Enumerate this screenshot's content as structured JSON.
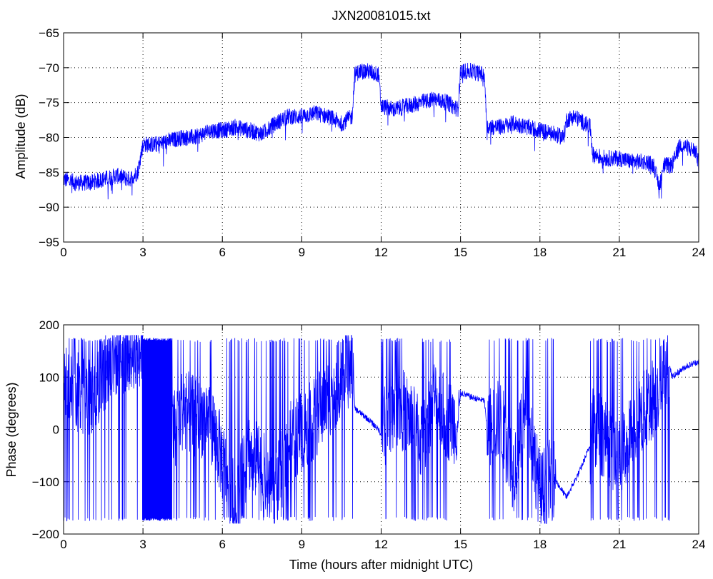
{
  "chart_data": [
    {
      "type": "line",
      "title": "JXN20081015.txt",
      "xlabel": "",
      "ylabel": "Amplitude (dB)",
      "xlim": [
        0,
        24
      ],
      "ylim": [
        -95,
        -65
      ],
      "x_ticks": [
        "0",
        "3",
        "6",
        "9",
        "12",
        "15",
        "18",
        "21",
        "24"
      ],
      "y_ticks": [
        "-65",
        "-70",
        "-75",
        "-80",
        "-85",
        "-90",
        "-95"
      ],
      "grid": true,
      "line_color": "#0000ff",
      "noise_db": 1.2,
      "series": [
        {
          "name": "",
          "x": [
            0,
            0.5,
            1,
            1.5,
            2,
            2.5,
            2.8,
            2.9,
            3.0,
            3.5,
            4.0,
            4.5,
            5.0,
            5.5,
            6.0,
            6.5,
            7.0,
            7.5,
            8.0,
            8.5,
            9.0,
            9.5,
            10.0,
            10.5,
            10.9,
            11.0,
            11.2,
            11.5,
            11.9,
            12.0,
            12.5,
            13.0,
            13.5,
            14.0,
            14.5,
            14.9,
            15.0,
            15.4,
            15.9,
            16.0,
            16.5,
            17.0,
            17.5,
            18.0,
            18.5,
            18.9,
            19.0,
            19.3,
            19.7,
            19.9,
            20.0,
            20.5,
            21.0,
            21.5,
            22.0,
            22.3,
            22.5,
            22.7,
            23.0,
            23.3,
            23.6,
            23.9,
            24.0
          ],
          "y": [
            -86,
            -86.5,
            -86.5,
            -86,
            -85.5,
            -86,
            -85,
            -83,
            -81,
            -81,
            -80.5,
            -80,
            -80,
            -79,
            -79,
            -78.5,
            -79,
            -79.5,
            -78,
            -77,
            -77,
            -76.5,
            -77,
            -78,
            -77,
            -71,
            -70.5,
            -70.5,
            -71,
            -75.5,
            -76,
            -75.5,
            -75,
            -74.5,
            -75,
            -76,
            -70.5,
            -70.5,
            -71,
            -78.5,
            -78.5,
            -78,
            -78.5,
            -79,
            -79.5,
            -80,
            -77.5,
            -77,
            -78,
            -78.5,
            -82.5,
            -83,
            -83,
            -83.5,
            -83.5,
            -84,
            -87,
            -84,
            -84,
            -81,
            -81.5,
            -82,
            -84
          ]
        }
      ]
    },
    {
      "type": "line",
      "title": "",
      "xlabel": "Time (hours after midnight UTC)",
      "ylabel": "Phase (degrees)",
      "xlim": [
        0,
        24
      ],
      "ylim": [
        -200,
        200
      ],
      "x_ticks": [
        "0",
        "3",
        "6",
        "9",
        "12",
        "15",
        "18",
        "21",
        "24"
      ],
      "y_ticks": [
        "200",
        "100",
        "0",
        "-100",
        "-200"
      ],
      "grid": true,
      "line_color": "#0000ff",
      "series": [
        {
          "name": "",
          "note_wrap_range": [
            -180,
            180
          ],
          "x": [
            0,
            1,
            2,
            2.9,
            3.0,
            3.5,
            4.0,
            4.5,
            5.0,
            5.5,
            6.0,
            6.5,
            7.0,
            7.5,
            8.0,
            8.5,
            9.0,
            9.5,
            10.0,
            10.5,
            10.95,
            11.0,
            11.5,
            11.9,
            12.0,
            12.5,
            13.0,
            13.5,
            14.0,
            14.5,
            14.9,
            15.0,
            15.5,
            15.9,
            16.0,
            16.5,
            17.0,
            17.5,
            18.0,
            18.5,
            19.0,
            19.5,
            19.9,
            20.0,
            20.5,
            21.0,
            21.5,
            22.0,
            22.5,
            22.9,
            23.0,
            23.5,
            24.0
          ],
          "y": [
            80,
            60,
            140,
            160,
            170,
            10,
            -20,
            40,
            20,
            30,
            -60,
            -150,
            -40,
            -80,
            -120,
            -30,
            0,
            20,
            60,
            100,
            130,
            40,
            20,
            0,
            -10,
            50,
            30,
            -20,
            60,
            20,
            10,
            70,
            60,
            55,
            0,
            20,
            -80,
            40,
            -120,
            -90,
            -130,
            -80,
            -30,
            10,
            -20,
            -60,
            0,
            40,
            80,
            120,
            100,
            120,
            130
          ]
        }
      ]
    }
  ]
}
